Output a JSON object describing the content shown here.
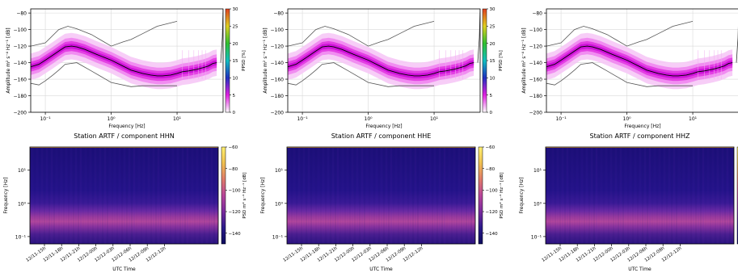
{
  "colors": {
    "ppsd_curve": "#000000",
    "noise_model": "#555555",
    "grid": "#d9d9d9",
    "ppsd_cbar_stops": [
      "#ffffff",
      "#e020e0",
      "#2030c0",
      "#10c0c0",
      "#30c030",
      "#e0d020",
      "#e04020"
    ],
    "spec_cbar_stops": [
      "#0d0b5c",
      "#2a1a8a",
      "#7a2a9e",
      "#b8459a",
      "#e07a6a",
      "#f0c050",
      "#fff070"
    ]
  },
  "panels": [
    {
      "component": "HHN",
      "title": "Station ARTF / component HHN"
    },
    {
      "component": "HHE",
      "title": "Station ARTF / component HHE"
    },
    {
      "component": "HHZ",
      "title": "Station ARTF / component HHZ"
    }
  ],
  "chart_data": [
    {
      "type": "line",
      "panel": "PPSD",
      "xlabel": "Frequency [Hz]",
      "ylabel": "Amplitude m² s⁻⁴ Hz⁻¹ [dB]",
      "xscale": "log",
      "xlim": [
        0.06,
        50
      ],
      "ylim": [
        -200,
        -75
      ],
      "xticks": [
        {
          "value": 0.1,
          "label": "10⁻¹"
        },
        {
          "value": 1,
          "label": "10⁰"
        },
        {
          "value": 10,
          "label": "10¹"
        }
      ],
      "yticks": [
        -200,
        -180,
        -160,
        -140,
        -120,
        -100,
        -80
      ],
      "grid": true,
      "colorbar": {
        "label": "PPSD [%]",
        "range": [
          0,
          30
        ],
        "ticks": [
          0,
          5,
          10,
          15,
          20,
          25,
          30
        ]
      },
      "series": [
        {
          "role": "ppsd_mode",
          "x": [
            0.06,
            0.08,
            0.1,
            0.13,
            0.16,
            0.2,
            0.25,
            0.3,
            0.4,
            0.6,
            1,
            1.5,
            2,
            3,
            4,
            5,
            6,
            8,
            10,
            12,
            15,
            20,
            25,
            30,
            35,
            40
          ],
          "y": [
            -145,
            -142,
            -137,
            -131,
            -126,
            -121,
            -120,
            -121,
            -124,
            -130,
            -137,
            -144,
            -149,
            -153,
            -155,
            -156,
            -156,
            -155,
            -153,
            -151,
            -150,
            -148,
            -146,
            -144,
            -141,
            -140
          ]
        },
        {
          "role": "high_noise_model",
          "x": [
            0.06,
            0.1,
            0.16,
            0.22,
            0.3,
            0.5,
            1,
            1.5,
            2,
            3,
            5,
            10
          ],
          "y": [
            -120,
            -116,
            -100,
            -96,
            -99,
            -106,
            -120,
            -115,
            -112,
            -105,
            -96,
            -90
          ]
        },
        {
          "role": "low_noise_model",
          "x": [
            0.06,
            0.08,
            0.1,
            0.13,
            0.16,
            0.2,
            0.3,
            0.5,
            1,
            2,
            3,
            5,
            10
          ],
          "y": [
            -165,
            -167,
            -162,
            -155,
            -149,
            -142,
            -140,
            -150,
            -164,
            -169,
            -168,
            -168,
            -168
          ]
        }
      ]
    },
    {
      "type": "heatmap",
      "panel": "Spectrogram",
      "xlabel": "UTC Time",
      "ylabel": "Frequency [Hz]",
      "yscale": "log",
      "ylim": [
        0.06,
        50
      ],
      "yticks": [
        {
          "value": 0.1,
          "label": "10⁻¹"
        },
        {
          "value": 1,
          "label": "10⁰"
        },
        {
          "value": 10,
          "label": "10¹"
        }
      ],
      "x": [
        "12/11-15h",
        "12/11-18h",
        "12/11-21h",
        "12/12-00h",
        "12/12-03h",
        "12/12-06h",
        "12/12-09h",
        "12/12-12h"
      ],
      "colorbar": {
        "label": "PSD m² s⁻⁴ Hz⁻¹ [dB]",
        "range": [
          -150,
          -60
        ],
        "ticks": [
          -140,
          -120,
          -100,
          -80,
          -60
        ]
      }
    }
  ]
}
